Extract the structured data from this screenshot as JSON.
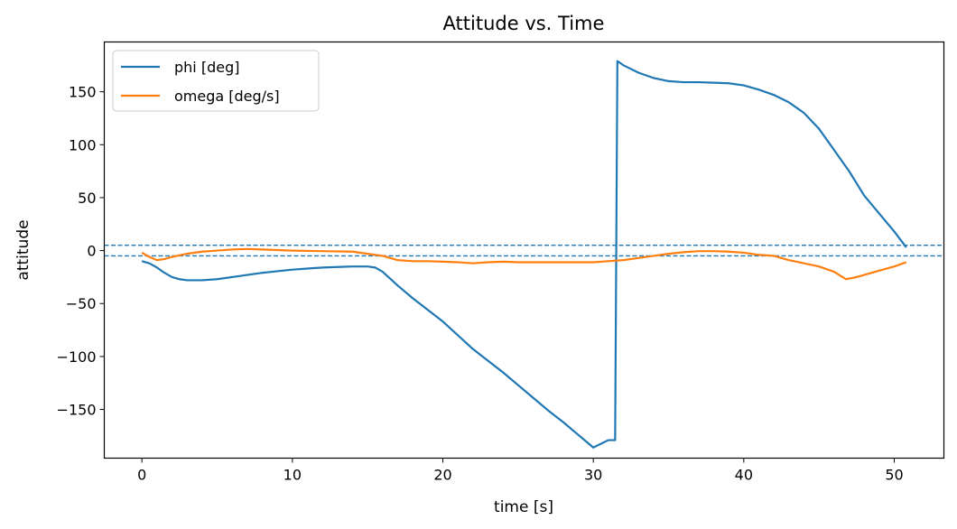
{
  "chart_data": {
    "type": "line",
    "title": "Attitude vs. Time",
    "xlabel": "time [s]",
    "ylabel": "attitude",
    "xlim": [
      -2.5,
      53.3
    ],
    "ylim": [
      -196,
      197
    ],
    "xticks": [
      0,
      10,
      20,
      30,
      40,
      50
    ],
    "yticks": [
      -150,
      -100,
      -50,
      0,
      50,
      100,
      150
    ],
    "xtick_labels": [
      "0",
      "10",
      "20",
      "30",
      "40",
      "50"
    ],
    "ytick_labels": [
      "−150",
      "−100",
      "−50",
      "0",
      "50",
      "100",
      "150"
    ],
    "grid": false,
    "legend_position": "top-left",
    "reference_lines": [
      {
        "y": 5,
        "style": "dashed",
        "color": "#1f77b4"
      },
      {
        "y": -5,
        "style": "dashed",
        "color": "#1f77b4"
      }
    ],
    "series": [
      {
        "name": "phi [deg]",
        "color": "#1f77b4",
        "x": [
          0,
          0.5,
          1,
          1.5,
          2,
          2.5,
          3,
          4,
          5,
          6,
          7,
          8,
          9,
          10,
          11,
          12,
          13,
          14,
          15,
          15.5,
          16,
          17,
          18,
          19,
          20,
          21,
          22,
          23,
          24,
          25,
          26,
          27,
          28,
          29,
          30,
          31,
          31.45,
          31.6,
          32,
          33,
          34,
          35,
          36,
          37,
          38,
          39,
          40,
          41,
          42,
          43,
          44,
          45,
          46,
          47,
          48,
          49,
          50,
          50.8
        ],
        "y": [
          -10,
          -12,
          -16,
          -21,
          -25,
          -27,
          -28,
          -28,
          -27,
          -25,
          -23,
          -21,
          -19.5,
          -18,
          -17,
          -16,
          -15.5,
          -15,
          -15,
          -16,
          -20,
          -33,
          -45,
          -56,
          -67,
          -80,
          -93,
          -104,
          -115,
          -127,
          -139,
          -151,
          -162,
          -174,
          -186,
          -179,
          -179,
          179,
          175,
          168,
          163,
          160,
          159,
          159,
          158.5,
          158,
          156,
          152,
          147,
          140,
          130,
          115,
          95,
          75,
          52,
          35,
          18,
          3
        ]
      },
      {
        "name": "omega [deg/s]",
        "color": "#ff7f0e",
        "x": [
          0,
          0.5,
          1,
          1.5,
          2,
          3,
          4,
          5,
          6,
          7,
          8,
          9,
          10,
          12,
          14,
          15,
          16,
          17,
          18,
          19,
          20,
          21,
          22,
          23,
          24,
          25,
          26,
          27,
          28,
          29,
          30,
          31,
          32,
          33,
          34,
          35,
          36,
          37,
          38,
          39,
          40,
          41,
          42,
          43,
          44,
          45,
          46,
          46.8,
          47.5,
          48,
          49,
          50,
          50.8
        ],
        "y": [
          -2,
          -6,
          -9,
          -8,
          -6,
          -3,
          -1,
          0,
          1,
          1.5,
          1,
          0.5,
          0,
          -0.5,
          -1,
          -3,
          -5,
          -9,
          -10,
          -10,
          -10.5,
          -11,
          -12,
          -11,
          -10.5,
          -11,
          -11,
          -11,
          -11,
          -11,
          -11,
          -10,
          -9,
          -7,
          -5,
          -3,
          -1.5,
          -0.5,
          -0.5,
          -1,
          -2,
          -4,
          -5,
          -9,
          -12,
          -15,
          -20,
          -27,
          -25,
          -23,
          -19,
          -15,
          -11
        ]
      }
    ]
  }
}
